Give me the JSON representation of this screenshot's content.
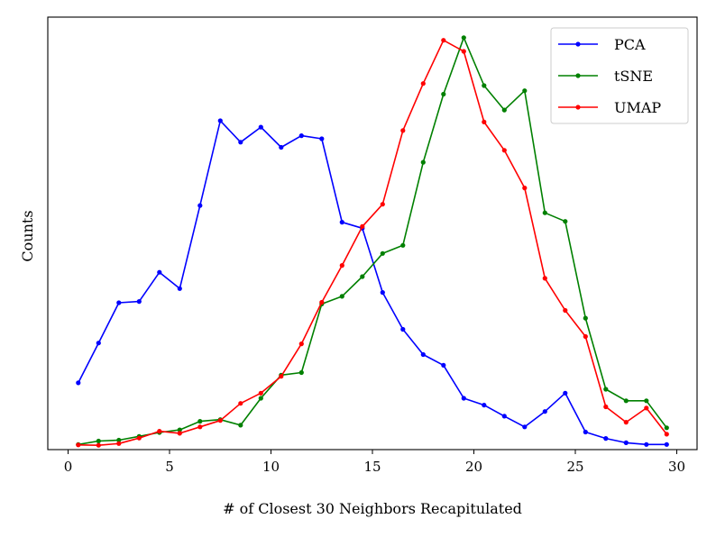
{
  "chart_data": {
    "type": "line",
    "xlabel": "# of Closest 30 Neighbors Recapitulated",
    "ylabel": "Counts",
    "xlim": [
      -1,
      31
    ],
    "ylim": [
      -1,
      100
    ],
    "x_ticks": [
      0,
      5,
      10,
      15,
      20,
      25,
      30
    ],
    "x_tick_labels": [
      "0",
      "5",
      "10",
      "15",
      "20",
      "25",
      "30"
    ],
    "y_tick_labels_visible": false,
    "grid": false,
    "legend_position": "top-right",
    "x": [
      0.5,
      1.5,
      2.5,
      3.5,
      4.5,
      5.5,
      6.5,
      7.5,
      8.5,
      9.5,
      10.5,
      11.5,
      12.5,
      13.5,
      14.5,
      15.5,
      16.5,
      17.5,
      18.5,
      19.5,
      20.5,
      21.5,
      22.5,
      23.5,
      24.5,
      25.5,
      26.5,
      27.5,
      28.5,
      29.5
    ],
    "series": [
      {
        "name": "PCA",
        "color": "#0000ff",
        "values": [
          14.6,
          23.9,
          33.3,
          33.6,
          40.4,
          36.6,
          56.0,
          75.8,
          70.8,
          74.3,
          69.6,
          72.3,
          71.6,
          52.1,
          50.7,
          35.7,
          27.1,
          21.2,
          18.7,
          11.0,
          9.4,
          6.8,
          4.3,
          7.9,
          12.2,
          3.1,
          1.6,
          0.6,
          0.2,
          0.2
        ]
      },
      {
        "name": "tSNE",
        "color": "#008000",
        "values": [
          0.2,
          1.0,
          1.2,
          2.1,
          3.0,
          3.6,
          5.6,
          6.0,
          4.7,
          11.0,
          16.4,
          17.0,
          33.0,
          34.8,
          39.4,
          44.8,
          46.7,
          66.1,
          82.0,
          95.2,
          84.0,
          78.3,
          82.8,
          54.3,
          52.3,
          29.7,
          13.1,
          10.4,
          10.4,
          4.1
        ]
      },
      {
        "name": "UMAP",
        "color": "#ff0000",
        "values": [
          0.1,
          0.0,
          0.4,
          1.7,
          3.3,
          2.8,
          4.3,
          5.8,
          9.8,
          12.2,
          16.1,
          23.7,
          33.4,
          42.0,
          51.1,
          56.3,
          73.5,
          84.5,
          94.6,
          92.0,
          75.5,
          68.9,
          60.1,
          39.0,
          31.5,
          25.4,
          9.0,
          5.4,
          8.7,
          2.6
        ]
      }
    ]
  }
}
